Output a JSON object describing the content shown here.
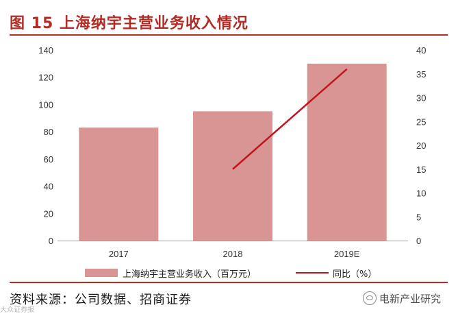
{
  "figure": {
    "title": "图 15 上海纳宇主营业务收入情况",
    "source": "资料来源：公司数据、招商证券",
    "watermark_right": "电新产业研究",
    "watermark_left": "大众证券报"
  },
  "chart_data": {
    "type": "bar",
    "categories": [
      "2017",
      "2018",
      "2019E"
    ],
    "series": [
      {
        "name": "上海纳宇主营业务收入（百万元）",
        "type": "bar",
        "axis": "left",
        "values": [
          83,
          95,
          130
        ],
        "color": "#d89593"
      },
      {
        "name": "同比（%）",
        "type": "line",
        "axis": "right",
        "values": [
          null,
          15,
          36
        ],
        "color": "#c0151b"
      }
    ],
    "y_left": {
      "min": 0,
      "max": 140,
      "ticks": [
        0,
        20,
        40,
        60,
        80,
        100,
        120,
        140
      ]
    },
    "y_right": {
      "min": 0,
      "max": 40,
      "ticks": [
        0,
        5,
        10,
        15,
        20,
        25,
        30,
        35,
        40
      ]
    },
    "grid": false,
    "legend_position": "bottom"
  }
}
